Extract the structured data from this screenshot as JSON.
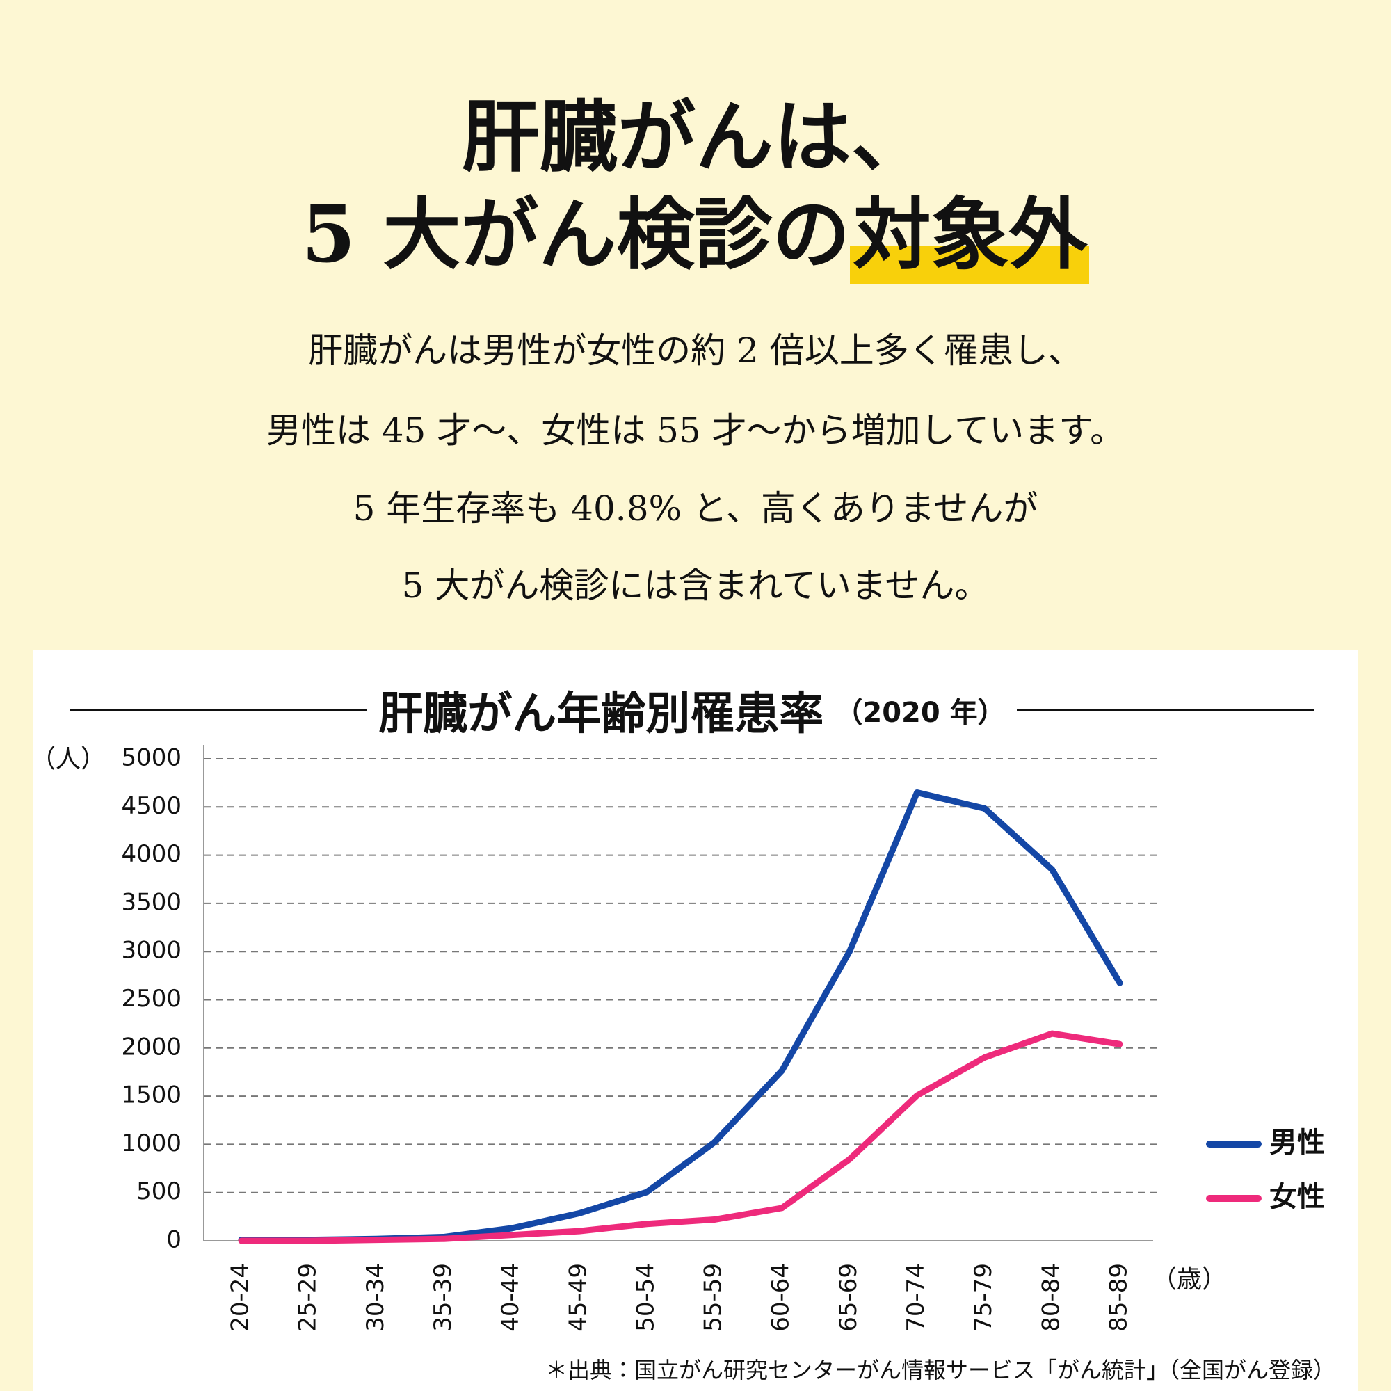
{
  "header": {
    "line1": "肝臓がんは、",
    "line2": "5 大がん検診の",
    "highlight": "対象外"
  },
  "body": [
    "肝臓がんは男性が女性の約 2 倍以上多く罹患し、",
    "男性は 45 才〜、女性は 55 才〜から増加しています。",
    "5 年生存率も 40.8% と、高くありませんが",
    "5 大がん検診には含まれていません。"
  ],
  "chart_data": {
    "type": "line",
    "title": "肝臓がん年齢別罹患率",
    "subtitle": "（2020 年）",
    "y_label": "（人）",
    "x_label": "（歳）",
    "categories": [
      "20-24",
      "25-29",
      "30-34",
      "35-39",
      "40-44",
      "45-49",
      "50-54",
      "55-59",
      "60-64",
      "65-69",
      "70-74",
      "75-79",
      "80-84",
      "85-89"
    ],
    "series": [
      {
        "name": "男性",
        "color": "#1447a6",
        "values": [
          10,
          10,
          20,
          40,
          130,
          285,
          505,
          1020,
          1765,
          3000,
          4650,
          4485,
          3850,
          2675
        ]
      },
      {
        "name": "女性",
        "color": "#ee2a7b",
        "values": [
          0,
          0,
          10,
          20,
          60,
          100,
          175,
          220,
          340,
          845,
          1507,
          1902,
          2150,
          2040
        ]
      }
    ],
    "ylim": [
      0,
      5000
    ],
    "yticks": [
      0,
      500,
      1000,
      1500,
      2000,
      2500,
      3000,
      3500,
      4000,
      4500,
      5000
    ],
    "grid": true,
    "legend": "right",
    "source": "＊出典：国立がん研究センターがん情報サービス「がん統計」（全国がん登録）"
  }
}
